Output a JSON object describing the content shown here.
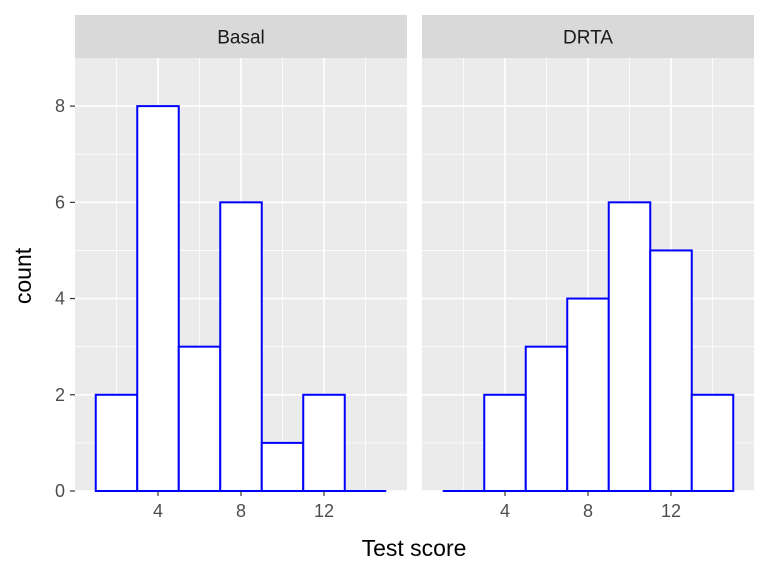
{
  "chart_data": {
    "type": "bar",
    "subtype": "histogram",
    "xlabel": "Test score",
    "ylabel": "count",
    "xlim": [
      0,
      16
    ],
    "ylim": [
      0,
      9
    ],
    "x_ticks": [
      4,
      8,
      12
    ],
    "y_ticks": [
      0,
      2,
      4,
      6,
      8
    ],
    "bin_width": 2,
    "bar_fill": "#ffffff",
    "bar_outline": "#0000ff",
    "panel_background": "#ebebeb",
    "strip_background": "#d9d9d9",
    "grid": true,
    "facets": [
      {
        "label": "Basal",
        "bins": [
          {
            "x0": 1,
            "x1": 3,
            "count": 2
          },
          {
            "x0": 3,
            "x1": 5,
            "count": 8
          },
          {
            "x0": 5,
            "x1": 7,
            "count": 3
          },
          {
            "x0": 7,
            "x1": 9,
            "count": 6
          },
          {
            "x0": 9,
            "x1": 11,
            "count": 1
          },
          {
            "x0": 11,
            "x1": 13,
            "count": 2
          },
          {
            "x0": 13,
            "x1": 15,
            "count": 0
          }
        ]
      },
      {
        "label": "DRTA",
        "bins": [
          {
            "x0": 1,
            "x1": 3,
            "count": 0
          },
          {
            "x0": 3,
            "x1": 5,
            "count": 2
          },
          {
            "x0": 5,
            "x1": 7,
            "count": 3
          },
          {
            "x0": 7,
            "x1": 9,
            "count": 4
          },
          {
            "x0": 9,
            "x1": 11,
            "count": 6
          },
          {
            "x0": 11,
            "x1": 13,
            "count": 5
          },
          {
            "x0": 13,
            "x1": 15,
            "count": 2
          }
        ]
      }
    ]
  }
}
